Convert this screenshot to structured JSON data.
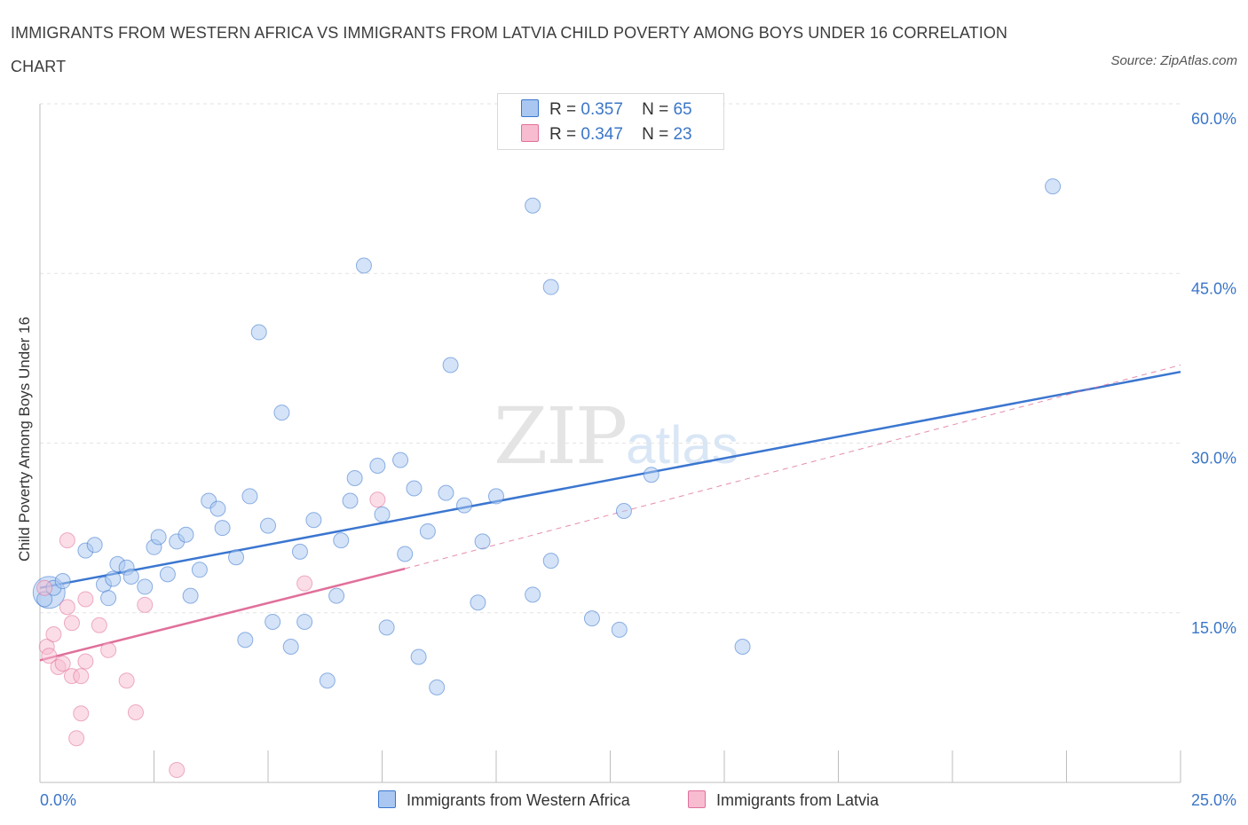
{
  "title": "IMMIGRANTS FROM WESTERN AFRICA VS IMMIGRANTS FROM LATVIA CHILD POVERTY AMONG BOYS UNDER 16 CORRELATION CHART",
  "source": "Source: ZipAtlas.com",
  "watermark": {
    "zip": "ZIP",
    "atlas": "atlas"
  },
  "stats": [
    {
      "r_label": "R =",
      "r_value": "0.357",
      "n_label": "N =",
      "n_value": "65",
      "color": "#a9c7f0"
    },
    {
      "r_label": "R =",
      "r_value": "0.347",
      "n_label": "N =",
      "n_value": "23",
      "color": "#f7bcd0"
    }
  ],
  "legend": [
    {
      "label": "Immigrants from Western Africa",
      "color": "#a9c7f0"
    },
    {
      "label": "Immigrants from Latvia",
      "color": "#f7bcd0"
    }
  ],
  "chart_data": {
    "type": "scatter",
    "title": "IMMIGRANTS FROM WESTERN AFRICA VS IMMIGRANTS FROM LATVIA CHILD POVERTY AMONG BOYS UNDER 16 CORRELATION CHART",
    "xlabel": "",
    "ylabel": "Child Poverty Among Boys Under 16",
    "xlim": [
      0,
      25
    ],
    "ylim": [
      0,
      60
    ],
    "x_tick_labels": [
      "0.0%",
      "25.0%"
    ],
    "y_ticks": [
      15,
      30,
      45,
      60
    ],
    "y_tick_labels": [
      "15.0%",
      "30.0%",
      "45.0%",
      "60.0%"
    ],
    "grid": true,
    "legend_position": "bottom",
    "series": [
      {
        "name": "Immigrants from Western Africa",
        "color": "#3b76d0",
        "fill": "#a9c7f0",
        "trend": {
          "x": [
            0,
            25
          ],
          "y": [
            17.2,
            36.3
          ]
        },
        "points": [
          [
            0.2,
            16.8
          ],
          [
            0.3,
            17.2
          ],
          [
            0.5,
            17.8
          ],
          [
            1.0,
            20.5
          ],
          [
            1.2,
            21.0
          ],
          [
            1.4,
            17.5
          ],
          [
            1.5,
            16.3
          ],
          [
            1.7,
            19.3
          ],
          [
            1.9,
            19.0
          ],
          [
            2.0,
            18.2
          ],
          [
            2.3,
            17.3
          ],
          [
            2.5,
            20.8
          ],
          [
            2.6,
            21.7
          ],
          [
            2.8,
            18.4
          ],
          [
            3.0,
            21.3
          ],
          [
            3.2,
            21.9
          ],
          [
            3.3,
            16.5
          ],
          [
            3.5,
            18.8
          ],
          [
            3.7,
            24.9
          ],
          [
            3.9,
            24.2
          ],
          [
            4.0,
            22.5
          ],
          [
            4.3,
            19.9
          ],
          [
            4.5,
            12.6
          ],
          [
            4.6,
            25.3
          ],
          [
            4.8,
            39.8
          ],
          [
            5.0,
            22.7
          ],
          [
            5.1,
            14.2
          ],
          [
            5.3,
            32.7
          ],
          [
            5.5,
            12.0
          ],
          [
            5.7,
            20.4
          ],
          [
            5.8,
            14.2
          ],
          [
            6.0,
            23.2
          ],
          [
            6.3,
            9.0
          ],
          [
            6.5,
            16.5
          ],
          [
            6.6,
            21.4
          ],
          [
            6.8,
            24.9
          ],
          [
            6.9,
            26.9
          ],
          [
            7.1,
            45.7
          ],
          [
            7.4,
            28.0
          ],
          [
            7.5,
            23.7
          ],
          [
            7.6,
            13.7
          ],
          [
            7.9,
            28.5
          ],
          [
            8.0,
            20.2
          ],
          [
            8.2,
            26.0
          ],
          [
            8.3,
            11.1
          ],
          [
            8.5,
            22.2
          ],
          [
            8.7,
            8.4
          ],
          [
            8.9,
            25.6
          ],
          [
            9.0,
            36.9
          ],
          [
            9.3,
            24.5
          ],
          [
            9.6,
            15.9
          ],
          [
            9.7,
            21.3
          ],
          [
            10.0,
            25.3
          ],
          [
            10.8,
            51.0
          ],
          [
            10.8,
            16.6
          ],
          [
            11.2,
            43.8
          ],
          [
            11.2,
            19.6
          ],
          [
            12.1,
            14.5
          ],
          [
            12.7,
            13.5
          ],
          [
            12.8,
            24.0
          ],
          [
            13.4,
            27.2
          ],
          [
            15.4,
            12.0
          ],
          [
            22.2,
            52.7
          ],
          [
            0.1,
            16.2
          ],
          [
            1.6,
            18.0
          ]
        ]
      },
      {
        "name": "Immigrants from Latvia",
        "color": "#e0709a",
        "fill": "#f7bcd0",
        "trend": {
          "x": [
            0,
            8.0
          ],
          "y": [
            10.8,
            18.9
          ]
        },
        "trend_extended": {
          "x": [
            8.0,
            25
          ],
          "y": [
            18.9,
            36.9
          ]
        },
        "points": [
          [
            0.1,
            17.2
          ],
          [
            0.15,
            12.0
          ],
          [
            0.2,
            11.2
          ],
          [
            0.3,
            13.1
          ],
          [
            0.4,
            10.2
          ],
          [
            0.5,
            10.5
          ],
          [
            0.6,
            15.5
          ],
          [
            0.6,
            21.4
          ],
          [
            0.7,
            9.4
          ],
          [
            0.7,
            14.1
          ],
          [
            0.8,
            3.9
          ],
          [
            0.9,
            9.4
          ],
          [
            0.9,
            6.1
          ],
          [
            1.0,
            10.7
          ],
          [
            1.0,
            16.2
          ],
          [
            1.3,
            13.9
          ],
          [
            1.5,
            11.7
          ],
          [
            1.9,
            9.0
          ],
          [
            2.1,
            6.2
          ],
          [
            2.3,
            15.7
          ],
          [
            3.0,
            1.1
          ],
          [
            5.8,
            17.6
          ],
          [
            7.4,
            25.0
          ]
        ]
      }
    ]
  }
}
